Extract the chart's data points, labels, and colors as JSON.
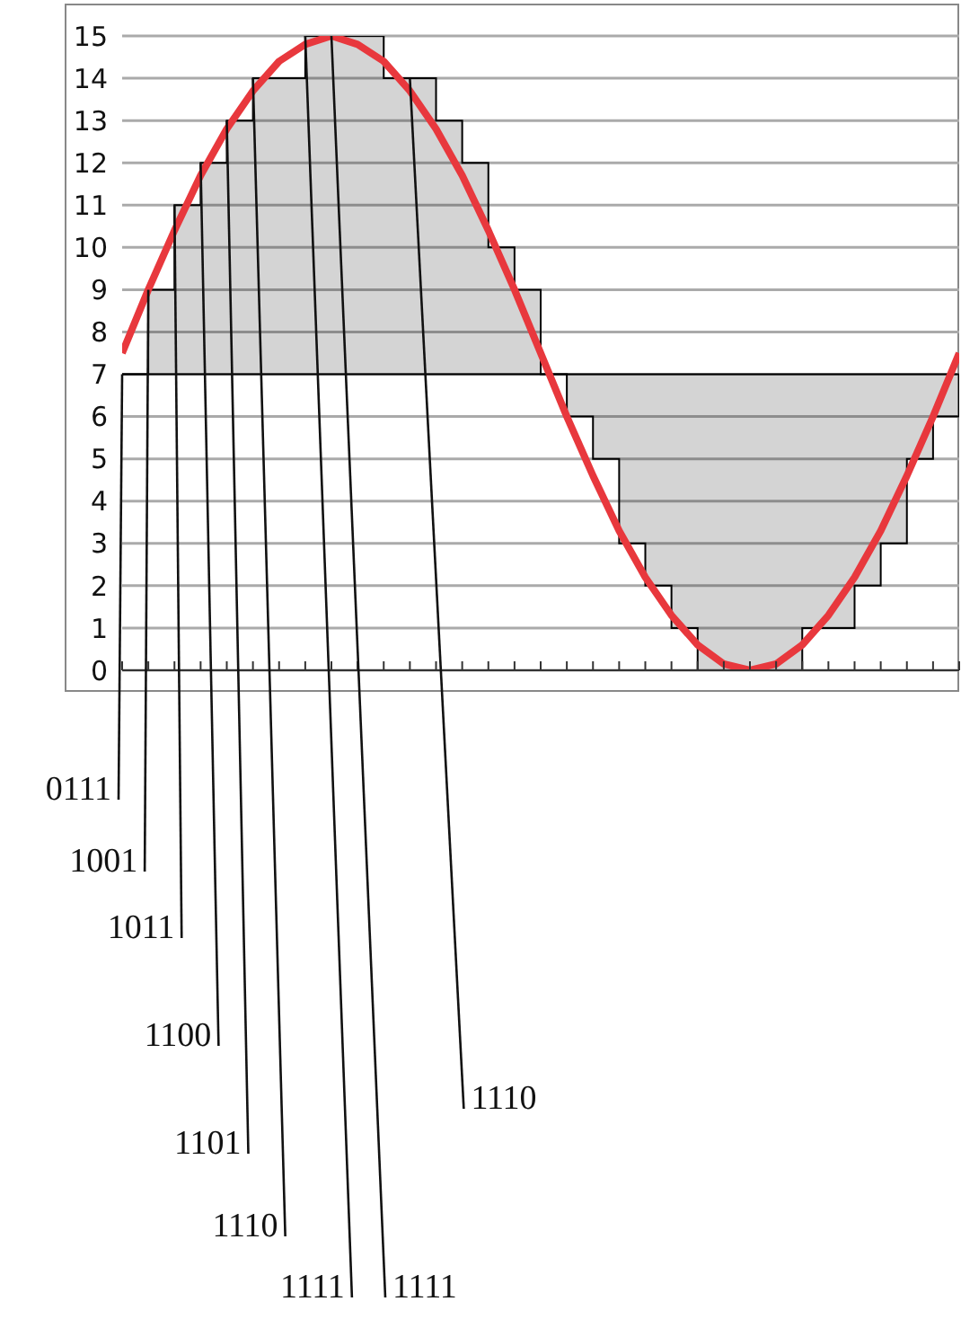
{
  "chart_data": {
    "type": "step",
    "categories": [
      null,
      null,
      null,
      null,
      null,
      null,
      null,
      null,
      null,
      null,
      null,
      null,
      null,
      null,
      null,
      null,
      null,
      null,
      null,
      null,
      null,
      null,
      null,
      null,
      null,
      null,
      null,
      null,
      null,
      null,
      null,
      null,
      null
    ],
    "series": [
      {
        "color": "#000000",
        "values": [
          7,
          9,
          11,
          12,
          13,
          14,
          14,
          15,
          15,
          15,
          14,
          14,
          13,
          12,
          10,
          9,
          7,
          6,
          5,
          3,
          2,
          1,
          0,
          0,
          0,
          0,
          1,
          1,
          2,
          3,
          5,
          6,
          7
        ]
      },
      {
        "type": "line",
        "color": "#e8383d",
        "values": [
          7.5,
          9,
          10.4,
          11.7,
          12.8,
          13.7,
          14.4,
          14.8,
          15,
          14.8,
          14.4,
          13.7,
          12.8,
          11.7,
          10.4,
          9,
          7.5,
          6,
          4.6,
          3.3,
          2.2,
          1.3,
          0.6,
          0.15,
          0,
          0.15,
          0.6,
          1.3,
          2.2,
          3.3,
          4.6,
          6,
          7.5
        ]
      }
    ],
    "ylim": [
      0,
      15
    ],
    "yticks": [
      0,
      1,
      2,
      3,
      4,
      5,
      6,
      7,
      8,
      9,
      10,
      11,
      12,
      13,
      14,
      15
    ],
    "grid": "y",
    "tick_labels": "y",
    "marker": "none",
    "ref_lines": [
      {
        "axis": "y",
        "value": 7,
        "color": "#000000"
      }
    ],
    "annotations": [
      "0111",
      "1001",
      "1011",
      "1100",
      "1101",
      "1110",
      "1111",
      "1111",
      "1110"
    ]
  }
}
